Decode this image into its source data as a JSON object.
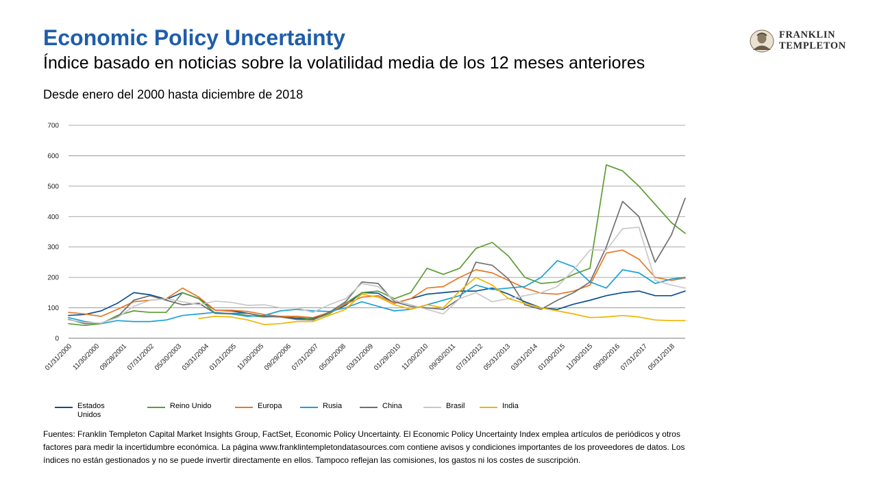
{
  "header": {
    "title": "Economic Policy Uncertainty",
    "subtitle": "Índice basado en noticias sobre la volatilidad media de los 12 meses anteriores",
    "caption": "Desde enero del 2000 hasta diciembre de 2018"
  },
  "logo": {
    "line1": "FRANKLIN",
    "line2": "TEMPLETON"
  },
  "sources": "Fuentes:  Franklin Templeton Capital Market Insights Group, FactSet, Economic Policy Uncertainty. El Economic Policy Uncertainty Index emplea artículos de periódicos y otros factores para medir la incertidumbre económica. La página www.franklintempletondatasources.com contiene avisos y condiciones importantes de los proveedores de datos. Los índices no están gestionados y no se puede invertir directamente en ellos. Tampoco reflejan las comisiones, los gastos ni los costes de suscripción.",
  "chart_data": {
    "type": "line",
    "title": "",
    "xlabel": "",
    "ylabel": "",
    "ylim": [
      0,
      700
    ],
    "yticks": [
      0,
      100,
      200,
      300,
      400,
      500,
      600,
      700
    ],
    "grid": true,
    "legend": "bottom",
    "x_tick_labels": [
      "01/31/2000",
      "11/30/2000",
      "09/28/2001",
      "07/31/2002",
      "05/30/2003",
      "03/31/2004",
      "01/31/2005",
      "11/30/2005",
      "09/29/2006",
      "07/31/2007",
      "05/30/2008",
      "03/31/2009",
      "01/29/2010",
      "11/30/2010",
      "09/30/2011",
      "07/31/2012",
      "05/31/2013",
      "03/31/2014",
      "01/30/2015",
      "11/30/2015",
      "09/30/2016",
      "07/31/2017",
      "05/31/2018"
    ],
    "x": [
      2000.0,
      2000.5,
      2001.0,
      2001.5,
      2002.0,
      2002.5,
      2003.0,
      2003.5,
      2004.0,
      2004.5,
      2005.0,
      2005.5,
      2006.0,
      2006.5,
      2007.0,
      2007.5,
      2008.0,
      2008.5,
      2009.0,
      2009.5,
      2010.0,
      2010.5,
      2011.0,
      2011.5,
      2012.0,
      2012.5,
      2013.0,
      2013.5,
      2014.0,
      2014.5,
      2015.0,
      2015.5,
      2016.0,
      2016.5,
      2017.0,
      2017.5,
      2018.0,
      2018.5,
      2018.92
    ],
    "series": [
      {
        "name": "Estados Unidos",
        "color": "#0b4f8f",
        "values": [
          75,
          78,
          90,
          115,
          150,
          143,
          128,
          150,
          130,
          92,
          90,
          82,
          72,
          72,
          65,
          65,
          85,
          108,
          150,
          148,
          115,
          130,
          145,
          150,
          155,
          155,
          165,
          145,
          120,
          100,
          95,
          112,
          125,
          140,
          150,
          155,
          140,
          140,
          155
        ]
      },
      {
        "name": "Reino Unido",
        "color": "#5c9c32",
        "values": [
          48,
          42,
          48,
          75,
          90,
          85,
          85,
          150,
          130,
          82,
          80,
          75,
          70,
          72,
          70,
          62,
          80,
          115,
          150,
          155,
          130,
          150,
          230,
          210,
          230,
          295,
          315,
          270,
          200,
          180,
          185,
          210,
          230,
          570,
          550,
          500,
          440,
          380,
          345
        ]
      },
      {
        "name": "Europa",
        "color": "#e87722",
        "values": [
          85,
          80,
          72,
          95,
          120,
          125,
          130,
          165,
          135,
          92,
          92,
          88,
          78,
          72,
          72,
          68,
          85,
          112,
          135,
          140,
          115,
          130,
          165,
          170,
          200,
          225,
          215,
          190,
          165,
          148,
          145,
          155,
          175,
          280,
          290,
          260,
          200,
          190,
          198
        ]
      },
      {
        "name": "Rusia",
        "color": "#19a0d8",
        "values": [
          68,
          55,
          48,
          58,
          55,
          55,
          60,
          75,
          80,
          85,
          80,
          72,
          75,
          90,
          95,
          90,
          88,
          100,
          120,
          105,
          90,
          95,
          110,
          125,
          140,
          175,
          160,
          165,
          170,
          200,
          255,
          235,
          185,
          165,
          225,
          215,
          180,
          195,
          200
        ]
      },
      {
        "name": "China",
        "color": "#6f6f6f",
        "values": [
          62,
          48,
          50,
          70,
          125,
          140,
          125,
          110,
          115,
          82,
          82,
          82,
          72,
          70,
          62,
          60,
          85,
          120,
          185,
          180,
          120,
          105,
          100,
          95,
          130,
          250,
          240,
          195,
          110,
          95,
          125,
          150,
          185,
          300,
          450,
          400,
          250,
          340,
          460
        ]
      },
      {
        "name": "Brasil",
        "color": "#c8c8c8",
        "values": [
          60,
          52,
          50,
          68,
          105,
          125,
          130,
          120,
          110,
          122,
          118,
          108,
          110,
          100,
          100,
          85,
          110,
          130,
          180,
          170,
          125,
          110,
          95,
          80,
          130,
          150,
          120,
          130,
          140,
          150,
          170,
          225,
          290,
          290,
          360,
          365,
          190,
          175,
          165
        ]
      },
      {
        "name": "India",
        "color": "#f0b400",
        "values": [
          null,
          null,
          null,
          null,
          null,
          null,
          null,
          null,
          65,
          72,
          70,
          60,
          45,
          48,
          55,
          55,
          75,
          95,
          145,
          135,
          110,
          95,
          110,
          100,
          155,
          200,
          175,
          130,
          115,
          100,
          90,
          80,
          68,
          70,
          75,
          70,
          60,
          58,
          58
        ]
      }
    ]
  }
}
